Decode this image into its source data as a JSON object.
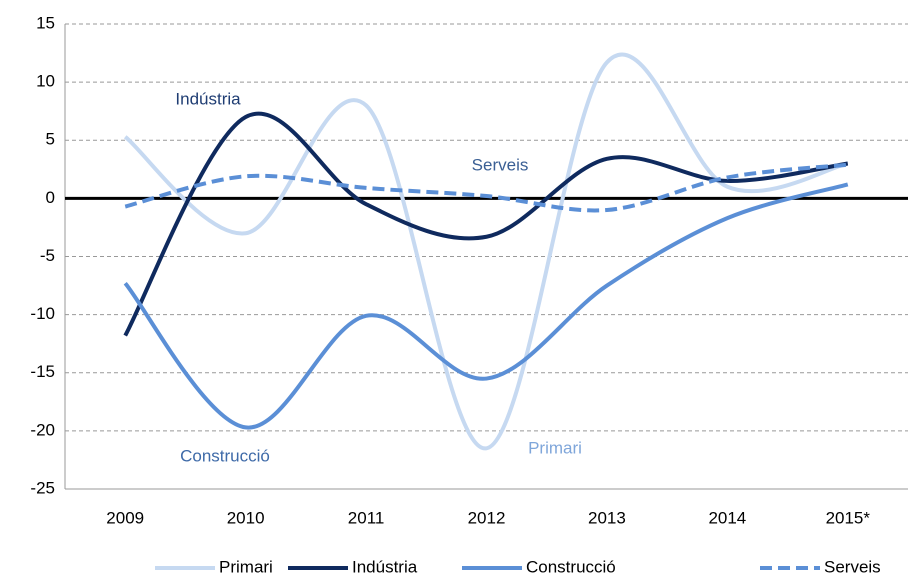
{
  "chart_data": {
    "type": "line",
    "categories": [
      "2009",
      "2010",
      "2011",
      "2012",
      "2013",
      "2014",
      "2015*"
    ],
    "series": [
      {
        "name": "Primari",
        "color": "#c6d9f1",
        "values": [
          5.3,
          -3.0,
          8.0,
          -21.5,
          11.7,
          1.0,
          3.0
        ]
      },
      {
        "name": "Indústria",
        "color": "#0f2a5e",
        "values": [
          -11.8,
          7.0,
          -0.5,
          -3.3,
          3.4,
          1.5,
          3.0
        ]
      },
      {
        "name": "Construcció",
        "color": "#5b8fd6",
        "values": [
          -7.3,
          -19.7,
          -10.1,
          -15.5,
          -7.5,
          -1.7,
          1.2
        ]
      },
      {
        "name": "Serveis",
        "color": "#5b8fd6",
        "dashed": true,
        "values": [
          -0.7,
          1.9,
          0.9,
          0.2,
          -1.0,
          1.8,
          2.9
        ]
      }
    ],
    "annotations": [
      "Indústria",
      "Serveis",
      "Construcció",
      "Primari"
    ],
    "ylim": [
      -25,
      15
    ],
    "yticks": [
      -25,
      -20,
      -15,
      -10,
      -5,
      0,
      5,
      10,
      15
    ],
    "grid": true,
    "legend": "bottom"
  }
}
